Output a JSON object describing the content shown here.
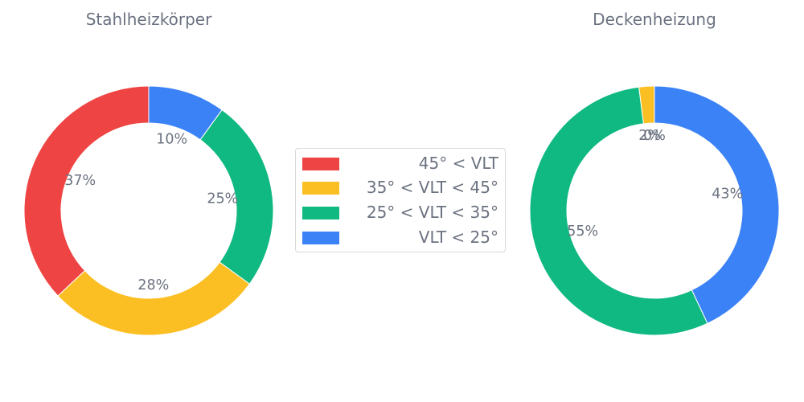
{
  "chart_data": [
    {
      "type": "pie",
      "title": "Stahlheizkörper",
      "categories": [
        "45° < VLT",
        "35° < VLT < 45°",
        "25° < VLT < 35°",
        "VLT < 25°"
      ],
      "values": [
        37,
        28,
        25,
        10
      ],
      "labels": [
        "37%",
        "28%",
        "25%",
        "10%"
      ],
      "colors": [
        "#ef4444",
        "#fbbf24",
        "#10b981",
        "#3b82f6"
      ]
    },
    {
      "type": "pie",
      "title": "Deckenheizung",
      "categories": [
        "45° < VLT",
        "35° < VLT < 45°",
        "25° < VLT < 35°",
        "VLT < 25°"
      ],
      "values": [
        0,
        2,
        55,
        43
      ],
      "labels": [
        "0%",
        "2%",
        "55%",
        "43%"
      ],
      "colors": [
        "#ef4444",
        "#fbbf24",
        "#10b981",
        "#3b82f6"
      ]
    }
  ],
  "legend": {
    "placement": "center",
    "items": [
      {
        "label": "45° < VLT",
        "color": "#ef4444"
      },
      {
        "label": "35° < VLT < 45°",
        "color": "#fbbf24"
      },
      {
        "label": "25° < VLT < 35°",
        "color": "#10b981"
      },
      {
        "label": "VLT < 25°",
        "color": "#3b82f6"
      }
    ]
  }
}
